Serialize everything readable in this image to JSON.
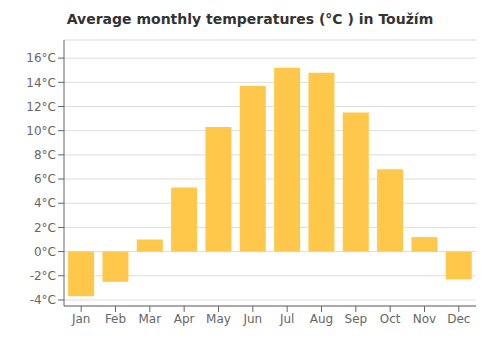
{
  "chart_data": {
    "type": "bar",
    "title": "Average monthly temperatures (°C ) in Toužím",
    "categories": [
      "Jan",
      "Feb",
      "Mar",
      "Apr",
      "May",
      "Jun",
      "Jul",
      "Aug",
      "Sep",
      "Oct",
      "Nov",
      "Dec"
    ],
    "values": [
      -3.7,
      -2.5,
      1.0,
      5.3,
      10.3,
      13.7,
      15.2,
      14.8,
      11.5,
      6.8,
      1.2,
      -2.3
    ],
    "color": "#FFC84A",
    "ylim": [
      -4.5,
      17.5
    ],
    "yticks": [
      {
        "value": -4,
        "label": "-4°C"
      },
      {
        "value": -2,
        "label": "-2°C"
      },
      {
        "value": 0,
        "label": "0°C"
      },
      {
        "value": 2,
        "label": "2°C"
      },
      {
        "value": 4,
        "label": "4°C"
      },
      {
        "value": 6,
        "label": "6°C"
      },
      {
        "value": 8,
        "label": "8°C"
      },
      {
        "value": 10,
        "label": "10°C"
      },
      {
        "value": 12,
        "label": "12°C"
      },
      {
        "value": 14,
        "label": "14°C"
      },
      {
        "value": 16,
        "label": "16°C"
      }
    ],
    "grid": true
  }
}
